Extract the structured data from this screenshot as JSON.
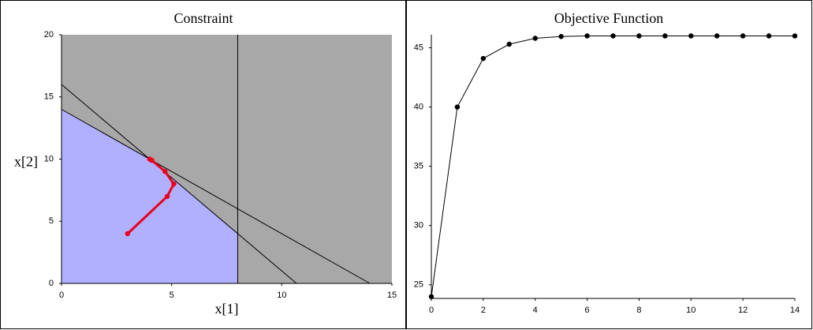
{
  "chart_data": [
    {
      "type": "line",
      "title": "Constraint",
      "xlabel": "x[1]",
      "ylabel": "x[2]",
      "xlim": [
        0,
        15
      ],
      "ylim": [
        0,
        20
      ],
      "xticks": [
        0,
        5,
        10,
        15
      ],
      "yticks": [
        0,
        5,
        10,
        15,
        20
      ],
      "background": "#a8a8a8",
      "series": [
        {
          "color": "#b0b0ff",
          "fill": true,
          "x": [
            0,
            0,
            4,
            8,
            8
          ],
          "values": [
            0,
            14,
            10,
            4,
            0
          ]
        },
        {
          "color": "#000000",
          "x": [
            0,
            10.67
          ],
          "values": [
            16,
            0
          ]
        },
        {
          "color": "#000000",
          "x": [
            0,
            14
          ],
          "values": [
            14,
            0
          ]
        },
        {
          "color": "#000000",
          "x": [
            8,
            8
          ],
          "values": [
            0,
            20
          ]
        },
        {
          "color": "#e8001c",
          "markers": true,
          "width": 3,
          "x": [
            3,
            4.8,
            5.1,
            4.7,
            4.1,
            4
          ],
          "values": [
            4,
            7,
            8,
            9,
            9.9,
            10
          ]
        }
      ]
    },
    {
      "type": "line",
      "title": "Objective Function",
      "xlim": [
        0,
        14
      ],
      "ylim": [
        23.85,
        46.1
      ],
      "xticks": [
        0,
        2,
        4,
        6,
        8,
        10,
        12,
        14
      ],
      "yticks": [
        25,
        30,
        35,
        40,
        45
      ],
      "series": [
        {
          "color": "#000000",
          "markers": true,
          "width": 1,
          "x": [
            0,
            1,
            2,
            3,
            4,
            5,
            6,
            7,
            8,
            9,
            10,
            11,
            12,
            13,
            14
          ],
          "values": [
            24,
            40,
            44.1,
            45.3,
            45.8,
            45.95,
            46,
            46,
            46,
            46,
            46,
            46,
            46,
            46,
            46
          ]
        }
      ]
    }
  ]
}
